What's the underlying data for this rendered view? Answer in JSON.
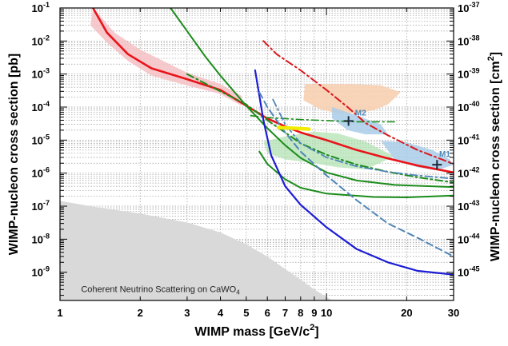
{
  "chart_data": {
    "type": "line",
    "xlabel": "WIMP mass [GeV/c",
    "xlabel_sup": "2",
    "xlabel_end": "]",
    "ylabel": "WIMP-nucleon cross section [pb]",
    "ylabel_right": "WIMP-nucleon cross section [cm",
    "ylabel_right_sup": "2",
    "ylabel_right_end": "]",
    "xscale": "log",
    "yscale": "log",
    "xlim": [
      1,
      30
    ],
    "ylim": [
      1.4e-10,
      0.1
    ],
    "grid": true,
    "x_ticks": [
      {
        "v": 1,
        "label": "1"
      },
      {
        "v": 2,
        "label": "2"
      },
      {
        "v": 3,
        "label": "3"
      },
      {
        "v": 4,
        "label": "4"
      },
      {
        "v": 5,
        "label": "5"
      },
      {
        "v": 6,
        "label": "6"
      },
      {
        "v": 7,
        "label": "7"
      },
      {
        "v": 8,
        "label": "8"
      },
      {
        "v": 9,
        "label": "9"
      },
      {
        "v": 10,
        "label": "10"
      },
      {
        "v": 20,
        "label": "20"
      },
      {
        "v": 30,
        "label": "30"
      }
    ],
    "y_ticks_left": [
      {
        "exp": -1,
        "label": "10",
        "sup": "-1"
      },
      {
        "exp": -2,
        "label": "10",
        "sup": "-2"
      },
      {
        "exp": -3,
        "label": "10",
        "sup": "-3"
      },
      {
        "exp": -4,
        "label": "10",
        "sup": "-4"
      },
      {
        "exp": -5,
        "label": "10",
        "sup": "-5"
      },
      {
        "exp": -6,
        "label": "10",
        "sup": "-6"
      },
      {
        "exp": -7,
        "label": "10",
        "sup": "-7"
      },
      {
        "exp": -8,
        "label": "10",
        "sup": "-8"
      },
      {
        "exp": -9,
        "label": "10",
        "sup": "-9"
      }
    ],
    "y_ticks_right": [
      {
        "exp": -37,
        "label": "10",
        "sup": "-37"
      },
      {
        "exp": -38,
        "label": "10",
        "sup": "-38"
      },
      {
        "exp": -39,
        "label": "10",
        "sup": "-39"
      },
      {
        "exp": -40,
        "label": "10",
        "sup": "-40"
      },
      {
        "exp": -41,
        "label": "10",
        "sup": "-41"
      },
      {
        "exp": -42,
        "label": "10",
        "sup": "-42"
      },
      {
        "exp": -43,
        "label": "10",
        "sup": "-43"
      },
      {
        "exp": -44,
        "label": "10",
        "sup": "-44"
      },
      {
        "exp": -45,
        "label": "10",
        "sup": "-45"
      }
    ],
    "annotations": [
      {
        "text": "Coherent Neutrino Scattering on CaWO",
        "sub": "4",
        "x": 1.2,
        "y": 2e-10
      },
      {
        "text": "M2",
        "x": 12.8,
        "y": 5.6e-05
      },
      {
        "text": "M1",
        "x": 26.5,
        "y": 3.2e-06
      }
    ],
    "markers": [
      {
        "name": "M2",
        "x": 12.1,
        "y": 3.8e-05
      },
      {
        "name": "M1",
        "x": 26.0,
        "y": 1.8e-06
      }
    ],
    "series": [
      {
        "color": "#e8141a",
        "dash": "solid",
        "width": 2.6,
        "points": [
          [
            1.33,
            0.1
          ],
          [
            1.5,
            0.018
          ],
          [
            1.8,
            0.004
          ],
          [
            2.2,
            0.0015
          ],
          [
            3,
            0.0007
          ],
          [
            4,
            0.00033
          ],
          [
            5,
            0.00011
          ],
          [
            6,
            4.5e-05
          ],
          [
            7,
            2.6e-05
          ],
          [
            8,
            1.7e-05
          ],
          [
            10,
            1e-05
          ],
          [
            13,
            5e-06
          ],
          [
            17,
            2.8e-06
          ],
          [
            22,
            1.7e-06
          ],
          [
            30,
            1.05e-06
          ]
        ]
      },
      {
        "color": "#1a8c1a",
        "dash": "solid",
        "width": 2.0,
        "points": [
          [
            2.6,
            0.1
          ],
          [
            3,
            0.02
          ],
          [
            3.5,
            0.0035
          ],
          [
            4,
            0.0009
          ],
          [
            5,
            0.00011
          ],
          [
            6,
            2.3e-05
          ],
          [
            7,
            7e-06
          ],
          [
            8,
            2.9e-06
          ],
          [
            10,
            1.05e-06
          ],
          [
            13,
            6e-07
          ],
          [
            18,
            4.4e-07
          ],
          [
            30,
            3.8e-07
          ]
        ]
      },
      {
        "color": "#1a8c1a",
        "dash": "solid",
        "width": 2.0,
        "points": [
          [
            5.6,
            4.5e-06
          ],
          [
            6,
            1.9e-06
          ],
          [
            7,
            6.5e-07
          ],
          [
            8,
            3.6e-07
          ],
          [
            10,
            2.4e-07
          ],
          [
            15,
            1.9e-07
          ],
          [
            20,
            1.85e-07
          ],
          [
            30,
            2.1e-07
          ]
        ]
      },
      {
        "color": "#1a8c1a",
        "dash": "dashdot",
        "width": 2.0,
        "points": [
          [
            3,
            0.001
          ],
          [
            4,
            0.0003
          ],
          [
            5,
            0.00012
          ],
          [
            6,
            4e-05
          ],
          [
            7,
            1.7e-05
          ],
          [
            8,
            8e-06
          ],
          [
            10,
            3.6e-06
          ],
          [
            13,
            1.8e-06
          ],
          [
            17,
            1.1e-06
          ],
          [
            22,
            7.5e-07
          ],
          [
            30,
            5.2e-07
          ]
        ]
      },
      {
        "color": "#1a8c1a",
        "dash": "dashdot",
        "width": 1.6,
        "points": [
          [
            5.2,
            5.5e-05
          ],
          [
            6,
            4.8e-05
          ],
          [
            8,
            4.2e-05
          ],
          [
            10,
            3.9e-05
          ],
          [
            13,
            3.6e-05
          ],
          [
            18,
            3.6e-05
          ]
        ]
      },
      {
        "color": "#1c1cd6",
        "dash": "solid",
        "width": 2.2,
        "points": [
          [
            5.4,
            0.0013
          ],
          [
            5.8,
            4e-05
          ],
          [
            6.2,
            3.5e-06
          ],
          [
            7,
            4e-07
          ],
          [
            8,
            1.1e-07
          ],
          [
            10,
            2.3e-08
          ],
          [
            13,
            5e-09
          ],
          [
            17,
            2e-09
          ],
          [
            22,
            1.1e-09
          ],
          [
            30,
            8.5e-10
          ]
        ]
      },
      {
        "color": "#4f85b8",
        "dash": "dashed",
        "width": 2.0,
        "points": [
          [
            5.6,
            0.00028
          ],
          [
            6,
            0.0001
          ],
          [
            7,
            1.7e-05
          ],
          [
            8,
            4.5e-06
          ],
          [
            10,
            8.5e-07
          ],
          [
            13,
            1.5e-07
          ],
          [
            17,
            3e-08
          ],
          [
            22,
            1.1e-08
          ],
          [
            30,
            3e-09
          ]
        ]
      },
      {
        "color": "#d8181c",
        "dash": "dashdot",
        "width": 2.0,
        "points": [
          [
            5.8,
            0.01
          ],
          [
            6.5,
            0.004
          ],
          [
            8,
            0.0013
          ],
          [
            10,
            0.00033
          ],
          [
            12,
            0.0001
          ],
          [
            14,
            3.3e-05
          ],
          [
            17,
            1.4e-05
          ],
          [
            22,
            5e-06
          ],
          [
            30,
            1.9e-06
          ]
        ]
      },
      {
        "color": "#4f85b8",
        "dash": "dashdot",
        "width": 1.8,
        "points": [
          [
            6.3,
            0.00017
          ],
          [
            7,
            3e-05
          ],
          [
            8,
            8e-06
          ],
          [
            10,
            3e-06
          ],
          [
            13,
            1.6e-06
          ],
          [
            17,
            1.1e-06
          ],
          [
            22,
            8.5e-07
          ],
          [
            30,
            6.8e-07
          ]
        ]
      },
      {
        "color": "#f2ec00",
        "dash": "solid",
        "width": 4.5,
        "points": [
          [
            6.6,
            2.4e-05
          ],
          [
            7.5,
            2.3e-05
          ],
          [
            8.6,
            2.15e-05
          ]
        ]
      }
    ],
    "regions": [
      {
        "color": "#f4c0c4",
        "opacity": 0.85,
        "points": [
          [
            1.33,
            0.1
          ],
          [
            1.6,
            0.018
          ],
          [
            2,
            0.0055
          ],
          [
            3,
            0.0011
          ],
          [
            4,
            0.0005
          ],
          [
            4.8,
            0.00022
          ],
          [
            4.8,
            0.00011
          ],
          [
            4,
            0.00025
          ],
          [
            3,
            0.00045
          ],
          [
            2.2,
            0.0009
          ],
          [
            1.8,
            0.0025
          ],
          [
            1.5,
            0.009
          ],
          [
            1.3,
            0.03
          ]
        ]
      },
      {
        "color": "#f7cfb1",
        "opacity": 0.9,
        "points": [
          [
            8.3,
            0.0005
          ],
          [
            12,
            0.0005
          ],
          [
            16,
            0.00046
          ],
          [
            19,
            0.00028
          ],
          [
            17,
            0.00012
          ],
          [
            15,
            8e-05
          ],
          [
            13,
            6.5e-05
          ],
          [
            11,
            6.5e-05
          ],
          [
            9.5,
            8.5e-05
          ],
          [
            8.2,
            0.00016
          ]
        ]
      },
      {
        "color": "#b3e2b3",
        "opacity": 0.75,
        "points": [
          [
            5.8,
            9e-06
          ],
          [
            7,
            1.3e-05
          ],
          [
            9,
            1.8e-05
          ],
          [
            11,
            1.6e-05
          ],
          [
            14,
            9e-06
          ],
          [
            18,
            3.2e-06
          ],
          [
            14,
            1.3e-06
          ],
          [
            11,
            1.5e-06
          ],
          [
            9,
            2e-06
          ],
          [
            7,
            2.6e-06
          ],
          [
            6,
            4e-06
          ]
        ]
      },
      {
        "color": "#a9cde8",
        "opacity": 0.85,
        "points": [
          [
            10.5,
            0.0001
          ],
          [
            13,
            5.5e-05
          ],
          [
            16,
            3e-05
          ],
          [
            17,
            1.5e-05
          ],
          [
            14,
            1.5e-05
          ],
          [
            12,
            2e-05
          ],
          [
            10.5,
            4.5e-05
          ]
        ]
      },
      {
        "color": "#a9cde8",
        "opacity": 0.85,
        "points": [
          [
            16,
            9.5e-06
          ],
          [
            20,
            8.5e-06
          ],
          [
            25,
            5e-06
          ],
          [
            29,
            2.6e-06
          ],
          [
            30,
            1.8e-06
          ],
          [
            26,
            1.2e-06
          ],
          [
            22,
            1.5e-06
          ],
          [
            18,
            2.6e-06
          ]
        ]
      },
      {
        "color": "#d9d9d9",
        "opacity": 1.0,
        "points": [
          [
            1,
            1.4e-10
          ],
          [
            1,
            1.45e-07
          ],
          [
            1.3,
            1e-07
          ],
          [
            2,
            6e-08
          ],
          [
            3,
            3.2e-08
          ],
          [
            4,
            1.6e-08
          ],
          [
            5,
            7e-09
          ],
          [
            6,
            3e-09
          ],
          [
            7,
            1.25e-09
          ],
          [
            8,
            6e-10
          ],
          [
            9,
            3e-10
          ],
          [
            10.5,
            1.4e-10
          ]
        ]
      }
    ]
  }
}
